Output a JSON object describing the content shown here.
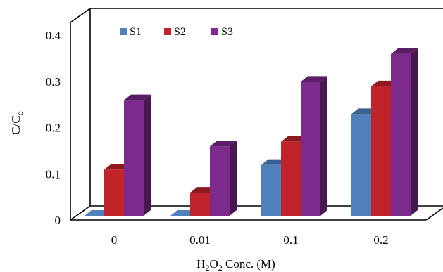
{
  "chart_data": {
    "type": "bar",
    "style": "3d-clustered-column",
    "categories": [
      "0",
      "0.01",
      "0.1",
      "0.2"
    ],
    "series": [
      {
        "name": "S1",
        "values": [
          0,
          0,
          0.11,
          0.22
        ]
      },
      {
        "name": "S2",
        "values": [
          0.1,
          0.05,
          0.16,
          0.28
        ]
      },
      {
        "name": "S3",
        "values": [
          0.25,
          0.15,
          0.29,
          0.35
        ]
      }
    ],
    "ylabel": {
      "main": "C/C",
      "sub": "o"
    },
    "xlabel": {
      "p1": "H",
      "s1": "2",
      "p2": "O",
      "s2": "2",
      "p3": " Conc. (M)"
    },
    "yticks": [
      "0",
      "0.1",
      "0.2",
      "0.3",
      "0.4"
    ],
    "ylim": [
      0,
      0.4
    ],
    "grid": false,
    "legend_position": "top-left"
  },
  "colors": {
    "S1": {
      "front": "#4F81BD",
      "top": "#3A6190",
      "side": "#2E4D74"
    },
    "S2": {
      "front": "#C0232A",
      "top": "#8E1A1F",
      "side": "#71151A"
    },
    "S3": {
      "front": "#7C2A8C",
      "top": "#5A1E66",
      "side": "#47184F"
    }
  }
}
